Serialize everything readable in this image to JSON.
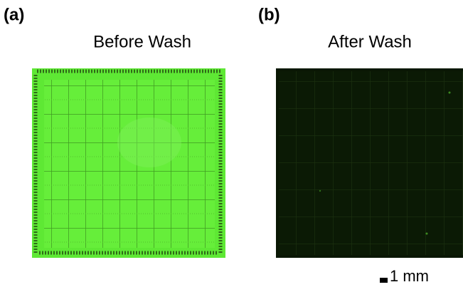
{
  "panels": [
    {
      "label": "(a)",
      "title": "Before Wash"
    },
    {
      "label": "(b)",
      "title": "After Wash"
    }
  ],
  "scale_bar": "1 mm"
}
